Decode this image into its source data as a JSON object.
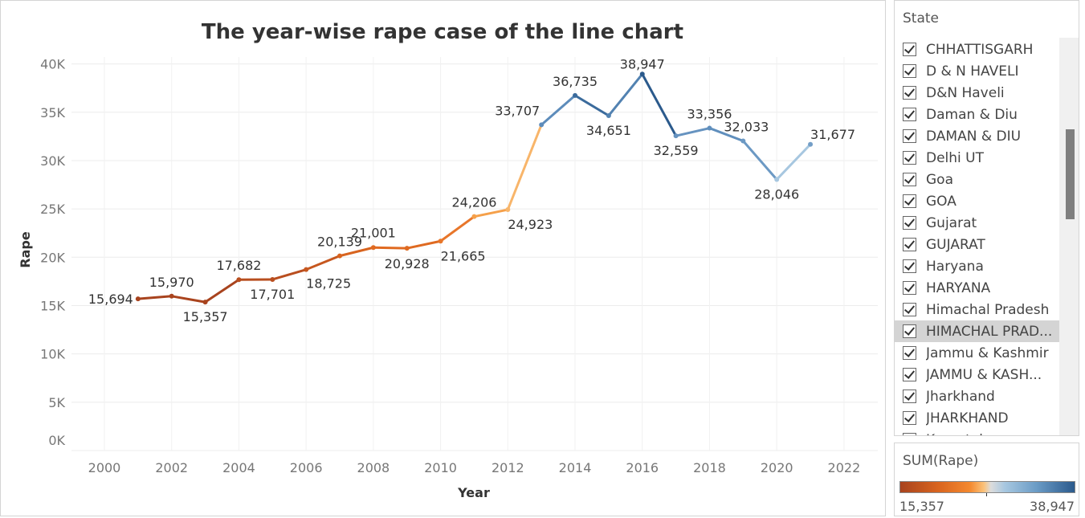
{
  "chart_data": {
    "type": "line",
    "title": "The year-wise rape case of the line chart",
    "xlabel": "Year",
    "ylabel": "Rape",
    "xlim": [
      1999,
      2023
    ],
    "ylim": [
      0,
      40000
    ],
    "x_ticks": [
      2000,
      2002,
      2004,
      2006,
      2008,
      2010,
      2012,
      2014,
      2016,
      2018,
      2020,
      2022
    ],
    "y_ticks": [
      {
        "value": 0,
        "label": "0K"
      },
      {
        "value": 5000,
        "label": "5K"
      },
      {
        "value": 10000,
        "label": "10K"
      },
      {
        "value": 15000,
        "label": "15K"
      },
      {
        "value": 20000,
        "label": "20K"
      },
      {
        "value": 25000,
        "label": "25K"
      },
      {
        "value": 30000,
        "label": "30K"
      },
      {
        "value": 35000,
        "label": "35K"
      },
      {
        "value": 40000,
        "label": "40K"
      }
    ],
    "grid": true,
    "points": [
      {
        "x": 2001,
        "y": 15694,
        "label": "15,694",
        "color": "#a8431e"
      },
      {
        "x": 2002,
        "y": 15970,
        "label": "15,970",
        "color": "#aa441e"
      },
      {
        "x": 2003,
        "y": 15357,
        "label": "15,357",
        "color": "#a8431e"
      },
      {
        "x": 2004,
        "y": 17682,
        "label": "17,682",
        "color": "#b84e1f"
      },
      {
        "x": 2005,
        "y": 17701,
        "label": "17,701",
        "color": "#b94e1f"
      },
      {
        "x": 2006,
        "y": 18725,
        "label": "18,725",
        "color": "#c6571f"
      },
      {
        "x": 2007,
        "y": 20139,
        "label": "20,139",
        "color": "#d8641f"
      },
      {
        "x": 2008,
        "y": 21001,
        "label": "21,001",
        "color": "#e06a21"
      },
      {
        "x": 2009,
        "y": 20928,
        "label": "20,928",
        "color": "#df6a21"
      },
      {
        "x": 2010,
        "y": 21665,
        "label": "21,665",
        "color": "#e8762a"
      },
      {
        "x": 2011,
        "y": 24206,
        "label": "24,206",
        "color": "#f5a04a"
      },
      {
        "x": 2012,
        "y": 24923,
        "label": "24,923",
        "color": "#f8b56a"
      },
      {
        "x": 2013,
        "y": 33707,
        "label": "33,707",
        "color": "#5d8cbb"
      },
      {
        "x": 2014,
        "y": 36735,
        "label": "36,735",
        "color": "#3b6b9c"
      },
      {
        "x": 2015,
        "y": 34651,
        "label": "34,651",
        "color": "#5282b1"
      },
      {
        "x": 2016,
        "y": 38947,
        "label": "38,947",
        "color": "#2b5a8c"
      },
      {
        "x": 2017,
        "y": 32559,
        "label": "32,559",
        "color": "#6693c0"
      },
      {
        "x": 2018,
        "y": 33356,
        "label": "33,356",
        "color": "#608fbd"
      },
      {
        "x": 2019,
        "y": 32033,
        "label": "32,033",
        "color": "#6c99c4"
      },
      {
        "x": 2020,
        "y": 28046,
        "label": "28,046",
        "color": "#a7c7e0"
      },
      {
        "x": 2021,
        "y": 31677,
        "label": "31,677",
        "color": "#739ec7"
      }
    ]
  },
  "state_filter": {
    "title": "State",
    "items": [
      {
        "label": "CHHATTISGARH",
        "checked": true
      },
      {
        "label": "D & N HAVELI",
        "checked": true
      },
      {
        "label": "D&N Haveli",
        "checked": true
      },
      {
        "label": "Daman & Diu",
        "checked": true
      },
      {
        "label": "DAMAN & DIU",
        "checked": true
      },
      {
        "label": "Delhi UT",
        "checked": true
      },
      {
        "label": "Goa",
        "checked": true
      },
      {
        "label": "GOA",
        "checked": true
      },
      {
        "label": "Gujarat",
        "checked": true
      },
      {
        "label": "GUJARAT",
        "checked": true
      },
      {
        "label": "Haryana",
        "checked": true
      },
      {
        "label": "HARYANA",
        "checked": true
      },
      {
        "label": "Himachal Pradesh",
        "checked": true
      },
      {
        "label": "HIMACHAL PRAD...",
        "checked": true,
        "highlighted": true
      },
      {
        "label": "Jammu & Kashmir",
        "checked": true
      },
      {
        "label": "JAMMU & KASH...",
        "checked": true
      },
      {
        "label": "Jharkhand",
        "checked": true
      },
      {
        "label": "JHARKHAND",
        "checked": true
      },
      {
        "label": "Karnataka",
        "checked": true
      }
    ]
  },
  "color_legend": {
    "title": "SUM(Rape)",
    "min_label": "15,357",
    "max_label": "38,947"
  }
}
